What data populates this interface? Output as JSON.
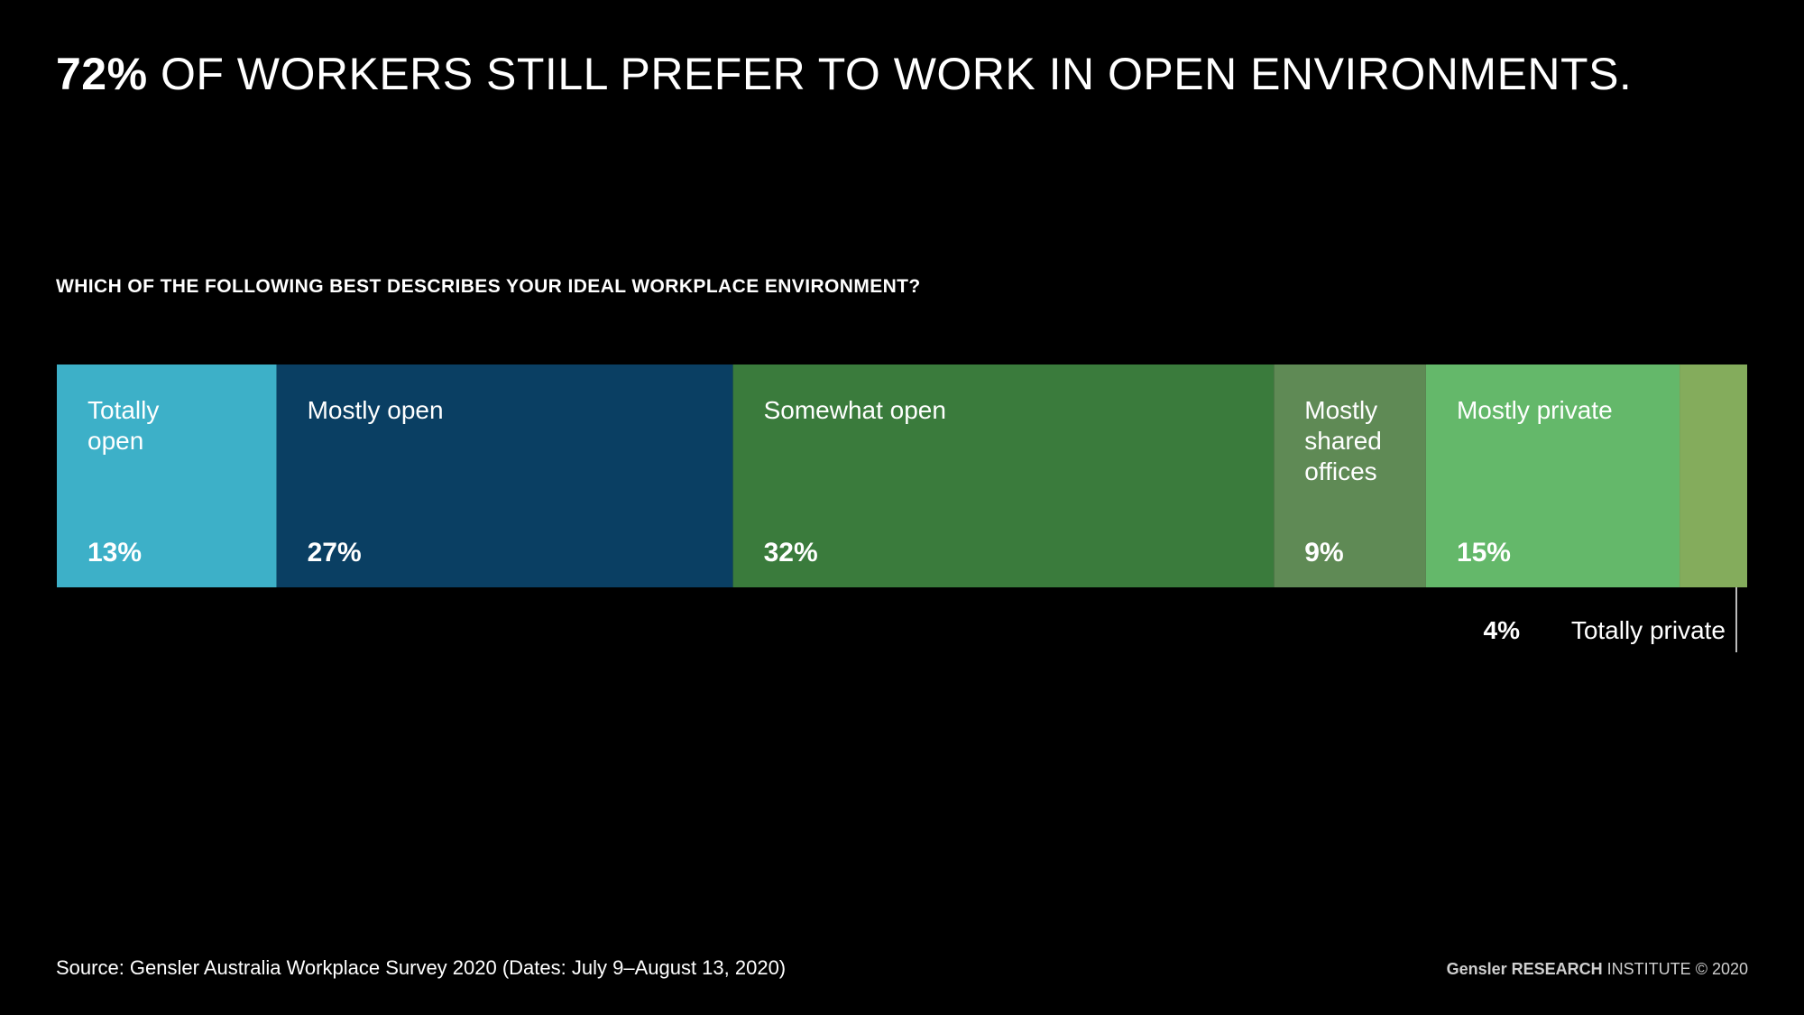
{
  "headline": {
    "emphasis": "72%",
    "rest": " OF WORKERS STILL PREFER TO WORK IN OPEN ENVIRONMENTS."
  },
  "question": "WHICH OF THE FOLLOWING BEST DESCRIBES YOUR IDEAL WORKPLACE ENVIRONMENT?",
  "chart_data": {
    "type": "bar",
    "orientation": "horizontal-stacked-100",
    "title": "WHICH OF THE FOLLOWING BEST DESCRIBES YOUR IDEAL WORKPLACE ENVIRONMENT?",
    "unit": "%",
    "categories": [
      "Totally open",
      "Mostly open",
      "Somewhat open",
      "Mostly shared offices",
      "Mostly private",
      "Totally private"
    ],
    "values": [
      13,
      27,
      32,
      9,
      15,
      4
    ],
    "labels": [
      [
        "Totally",
        "open"
      ],
      [
        "Mostly open"
      ],
      [
        "Somewhat open"
      ],
      [
        "Mostly",
        "shared",
        "offices"
      ],
      [
        "Mostly private"
      ],
      [
        "Totally private"
      ]
    ],
    "colors": [
      "#3DB0C8",
      "#0A3F63",
      "#3A7B3C",
      "#5F8A55",
      "#64B86A",
      "#84AC5C"
    ],
    "callout_outside": [
      5
    ]
  },
  "source": "Source: Gensler Australia Workplace Survey 2020 (Dates: July 9–August 13, 2020)",
  "credit": {
    "brand": "Gensler",
    "research": "RESEARCH",
    "institute": "INSTITUTE",
    "copyright": "© 2020"
  }
}
